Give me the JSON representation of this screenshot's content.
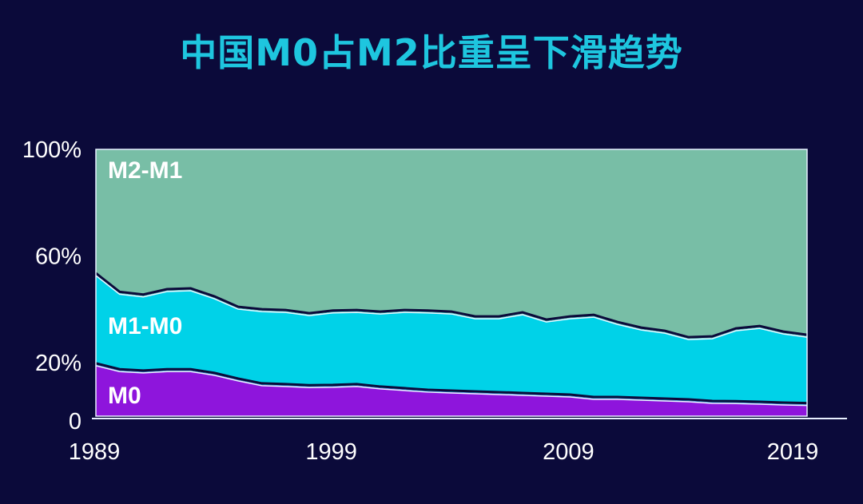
{
  "title": "中国M0占M2比重呈下滑趋势",
  "chart_data": {
    "type": "area",
    "stacked": true,
    "title": "中国M0占M2比重呈下滑趋势",
    "x": [
      1989,
      1990,
      1991,
      1992,
      1993,
      1994,
      1995,
      1996,
      1997,
      1998,
      1999,
      2000,
      2001,
      2002,
      2003,
      2004,
      2005,
      2006,
      2007,
      2008,
      2009,
      2010,
      2011,
      2012,
      2013,
      2014,
      2015,
      2016,
      2017,
      2018,
      2019
    ],
    "series": [
      {
        "name": "M0",
        "color": "#8e15dc",
        "values": [
          19.2,
          17,
          16.5,
          17,
          17,
          15.6,
          13.5,
          11.7,
          11.4,
          11,
          11.1,
          11.4,
          10.5,
          9.9,
          9.3,
          9,
          8.7,
          8.4,
          8.1,
          7.8,
          7.5,
          6.6,
          6.6,
          6.3,
          6,
          5.7,
          5.1,
          5,
          4.8,
          4.5,
          4.3
        ]
      },
      {
        "name": "M1-M0",
        "color": "#00d2e8",
        "cumulative": [
          53,
          46,
          45,
          47,
          47.3,
          44.3,
          40.4,
          39.5,
          39.2,
          38,
          39,
          39.2,
          38.6,
          39.2,
          39,
          38.6,
          36.8,
          36.8,
          38.3,
          35.6,
          36.8,
          37.4,
          34.7,
          32.6,
          31.4,
          29,
          29.3,
          32.3,
          33.2,
          31.1,
          29.9
        ]
      },
      {
        "name": "M2-M1",
        "color": "#78bea6",
        "cumulative_top": 100
      }
    ],
    "ylim": [
      0,
      100
    ],
    "yticks": [
      {
        "value": 0,
        "label": "0"
      },
      {
        "value": 20,
        "label": "20%"
      },
      {
        "value": 60,
        "label": "60%"
      },
      {
        "value": 100,
        "label": "100%"
      }
    ],
    "xticks": [
      1989,
      1999,
      2009,
      2019
    ],
    "xtick_labels": [
      "1989",
      "1999",
      "2009",
      "2019"
    ],
    "area_labels": [
      "M2-M1",
      "M1-M0",
      "M0"
    ],
    "grid": false
  }
}
